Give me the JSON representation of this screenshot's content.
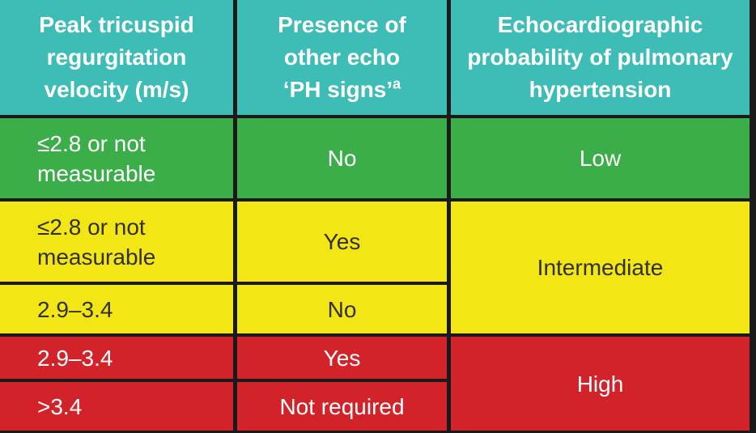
{
  "chart_data": {
    "type": "table",
    "header": [
      {
        "lines": [
          "Peak tricuspid",
          "regurgitation",
          "velocity (m/s)"
        ]
      },
      {
        "lines": [
          "Presence of",
          "other echo",
          "‘PH signs’"
        ],
        "superscript": "a"
      },
      {
        "lines": [
          "Echocardiographic",
          "probability of pulmonary",
          "hypertension"
        ]
      }
    ],
    "body": {
      "green_row": {
        "velocity": "≤2.8 or not measurable",
        "ph_signs": "No",
        "probability": "Low"
      },
      "yellow_row1": {
        "velocity": "≤2.8 or not measurable",
        "ph_signs": "Yes"
      },
      "yellow_row2": {
        "velocity": "2.9–3.4",
        "ph_signs": "No"
      },
      "yellow_probability": "Intermediate",
      "red_row1": {
        "velocity": "2.9–3.4",
        "ph_signs": "Yes"
      },
      "red_row2": {
        "velocity": ">3.4",
        "ph_signs": "Not required"
      },
      "red_probability": "High"
    },
    "rows_flat": [
      [
        "≤2.8 or not measurable",
        "No",
        "Low"
      ],
      [
        "≤2.8 or not measurable",
        "Yes",
        "Intermediate"
      ],
      [
        "2.9–3.4",
        "No",
        "Intermediate"
      ],
      [
        "2.9–3.4",
        "Yes",
        "High"
      ],
      [
        ">3.4",
        "Not required",
        "High"
      ]
    ],
    "colors": {
      "header_bg": "#3EBDB7",
      "low_bg": "#3CAE49",
      "intermediate_bg": "#F2E715",
      "high_bg": "#D2232B",
      "border": "#1A1A1A",
      "header_text": "#FFFFFF",
      "light_text": "#FFFFFF",
      "dark_text": "#33302B"
    }
  }
}
